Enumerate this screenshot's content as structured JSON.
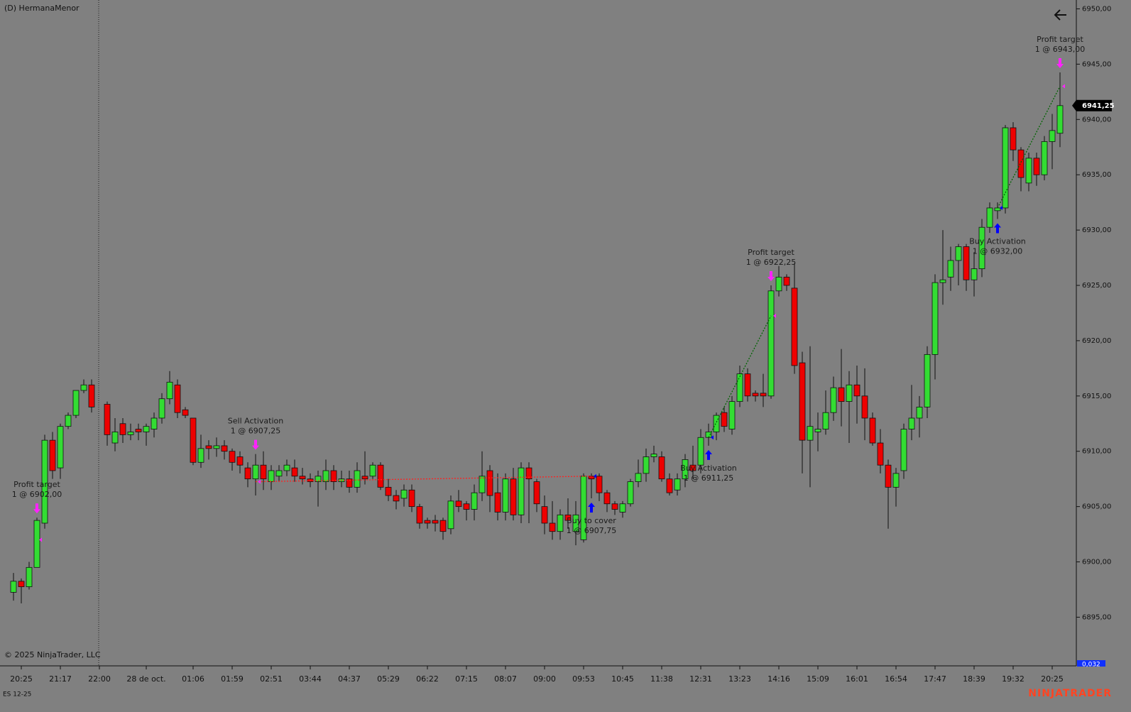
{
  "chart_data": {
    "type": "candlestick",
    "title": "(D) HermanaMenor",
    "instrument": "ES 12-25",
    "copyright": "© 2025 NinjaTrader, LLC",
    "brand": "NINJATRADER",
    "bottom_label": "0,032",
    "last_price": {
      "value": 6941.25,
      "label": "6941,25"
    },
    "up_color": "#33dd33",
    "down_color": "#ee0000",
    "ylim": [
      6890.6,
      6950.8
    ],
    "yticks": [
      {
        "value": 6895,
        "label": "6895,00"
      },
      {
        "value": 6900,
        "label": "6900,00"
      },
      {
        "value": 6905,
        "label": "6905,00"
      },
      {
        "value": 6910,
        "label": "6910,00"
      },
      {
        "value": 6915,
        "label": "6915,00"
      },
      {
        "value": 6920,
        "label": "6920,00"
      },
      {
        "value": 6925,
        "label": "6925,00"
      },
      {
        "value": 6930,
        "label": "6930,00"
      },
      {
        "value": 6935,
        "label": "6935,00"
      },
      {
        "value": 6940,
        "label": "6940,00"
      },
      {
        "value": 6945,
        "label": "6945,00"
      },
      {
        "value": 6950,
        "label": "6950,00"
      }
    ],
    "categories": [
      null,
      "20:25",
      null,
      null,
      null,
      null,
      "21:17",
      null,
      null,
      null,
      null,
      "22:00",
      null,
      null,
      null,
      null,
      null,
      "28 de oct.",
      null,
      null,
      null,
      null,
      null,
      "01:06",
      null,
      null,
      null,
      null,
      "01:59",
      null,
      null,
      null,
      null,
      "02:51",
      null,
      null,
      null,
      null,
      "03:44",
      null,
      null,
      null,
      null,
      "04:37",
      null,
      null,
      null,
      null,
      "05:29",
      null,
      null,
      null,
      null,
      "06:22",
      null,
      null,
      null,
      null,
      "07:15",
      null,
      null,
      null,
      null,
      "08:07",
      null,
      null,
      null,
      null,
      "09:00",
      null,
      null,
      null,
      null,
      "09:53",
      null,
      null,
      null,
      null,
      "10:45",
      null,
      null,
      null,
      null,
      "11:38",
      null,
      null,
      null,
      null,
      "12:31",
      null,
      null,
      null,
      null,
      "13:23",
      null,
      null,
      null,
      null,
      "14:16",
      null,
      null,
      null,
      null,
      "15:09",
      null,
      null,
      null,
      null,
      "16:01",
      null,
      null,
      null,
      null,
      "16:54",
      null,
      null,
      null,
      null,
      "17:47",
      null,
      null,
      null,
      null,
      "18:39",
      null,
      null,
      null,
      null,
      "19:32",
      null,
      null,
      null,
      null,
      "20:25",
      null
    ],
    "open": [
      6897.25,
      6898.25,
      6897.75,
      6899.5,
      6903.5,
      6911,
      6908.5,
      6912.25,
      6913.25,
      6915.5,
      6916,
      null,
      6914.25,
      6910.75,
      6912.5,
      6911.5,
      6912,
      6911.75,
      6912,
      6913,
      6914.75,
      6916,
      6913.75,
      6913,
      6909,
      6910.5,
      6910.25,
      6910.5,
      6910,
      6909.5,
      6908.5,
      6907.5,
      6908.75,
      6907.25,
      6907.75,
      6908.25,
      6908.5,
      6907.75,
      6907.5,
      6907.25,
      6907.25,
      6908.25,
      6907.25,
      6907.5,
      6906.75,
      6907.75,
      6907.75,
      6908.75,
      6906.75,
      6906,
      6905.75,
      6906.5,
      6905,
      6903.75,
      6903.75,
      6903.75,
      6903,
      6905.5,
      6905.25,
      6904.75,
      6906.25,
      6908.25,
      6906.25,
      6904.5,
      6907.5,
      6904.25,
      6908.5,
      6907.25,
      6905,
      6903.5,
      6902.75,
      6904.25,
      6902.75,
      6902,
      6907.75,
      6907.75,
      6906.25,
      6905.25,
      6904.5,
      6905.25,
      6907.25,
      6908,
      6909.5,
      6909.5,
      6907.5,
      6906.5,
      6907.5,
      6908.75,
      6908.75,
      6911.25,
      6911.75,
      6913.5,
      6912,
      6914.5,
      6917,
      6915.25,
      6915.25,
      6915,
      6924.5,
      6925.75,
      6924.75,
      6918,
      6911,
      6911.75,
      6912,
      6913.5,
      6915.75,
      6914.5,
      6916,
      6915,
      6913,
      6910.75,
      6908.75,
      6906.75,
      6908.25,
      6912,
      6913,
      6914,
      6918.75,
      6925.25,
      6925.75,
      6927.25,
      6928.5,
      6925.5,
      6926.5,
      6930.25,
      6931.75,
      6932,
      6939.25,
      6937.25,
      6934.25,
      6936.5,
      6935,
      6938,
      6938.75
    ],
    "high": [
      6899,
      6898.5,
      6900,
      6904,
      6911.5,
      6911.75,
      6912.5,
      6913.5,
      6915.5,
      6916.5,
      6916.5,
      null,
      6914.5,
      6913,
      6913,
      6912.5,
      6912.5,
      6912.5,
      6913.5,
      6915.25,
      6917.25,
      6916.5,
      6914,
      6913,
      6911.5,
      6911,
      6911.25,
      6911,
      6910.25,
      6910,
      6909,
      6909.75,
      6910,
      6908.75,
      6908.75,
      6909.25,
      6909.25,
      6908.5,
      6908,
      6908.25,
      6909.25,
      6908.75,
      6908.25,
      6908.25,
      6909,
      6910,
      6909,
      6909,
      6907.5,
      6906.5,
      6907,
      6907,
      6905.25,
      6904,
      6904.25,
      6904,
      6906,
      6906.5,
      6905.5,
      6907,
      6910,
      6908.75,
      6908,
      6908,
      6908.5,
      6909,
      6909,
      6907.5,
      6906,
      6905.5,
      6904.75,
      6905.75,
      6905.5,
      6908,
      6908,
      6908,
      6906.5,
      6905.5,
      6905.5,
      6907.5,
      6909.25,
      6910.25,
      6910.5,
      6910,
      6908,
      6908,
      6909.75,
      6910.5,
      6912,
      6912.5,
      6913.5,
      6914,
      6915,
      6917.75,
      6917.5,
      6915.5,
      6917,
      6925,
      6926.75,
      6926,
      6927,
      6919,
      6919.5,
      6913.5,
      6915.5,
      6916.75,
      6919.25,
      6917.25,
      6917.75,
      6917.5,
      6913.5,
      6912,
      6909.25,
      6908.5,
      6912.5,
      6916,
      6915,
      6919.5,
      6926,
      6930,
      6928.5,
      6928.75,
      6928.75,
      6928,
      6931,
      6932.5,
      6932.5,
      6939.5,
      6939.75,
      6937.5,
      6937,
      6937,
      6938.5,
      6940.5,
      6944.25
    ],
    "low": [
      6896.5,
      6896.25,
      6897.5,
      6899.5,
      6903,
      6907.5,
      6907.5,
      6912,
      6913,
      6915.25,
      6913.5,
      null,
      6910.5,
      6910,
      6910.75,
      6911,
      6911,
      6910.5,
      6911.25,
      6912.5,
      6914.25,
      6913,
      6913,
      6908.75,
      6908.5,
      6909.25,
      6909.5,
      6909.25,
      6908.25,
      6908,
      6906.75,
      6906,
      6906.5,
      6906.5,
      6907.25,
      6907.75,
      6907.25,
      6907,
      6906.75,
      6905,
      6906.5,
      6906.5,
      6906.75,
      6906.25,
      6906.25,
      6907,
      6907.5,
      6906.5,
      6905.5,
      6904.75,
      6905,
      6904.5,
      6903,
      6903,
      6902.75,
      6902,
      6902.5,
      6904.5,
      6903.75,
      6903.75,
      6905.5,
      6904.5,
      6903.75,
      6903.75,
      6903.75,
      6903.5,
      6903.5,
      6904.5,
      6902.5,
      6902,
      6902,
      6903,
      6901.5,
      6901.75,
      6905.75,
      6905.5,
      6904.5,
      6904.25,
      6904,
      6905,
      6906.75,
      6907.25,
      6909,
      6907.25,
      6906,
      6906,
      6906.75,
      6907.5,
      6908,
      6910.5,
      6911,
      6911.75,
      6911.5,
      6914,
      6914.5,
      6914.5,
      6914,
      6914.75,
      6924,
      6924.5,
      6917,
      6908,
      6906.75,
      6910,
      6911.5,
      6912.75,
      6912.25,
      6910.75,
      6912.5,
      6911,
      6910.5,
      6908,
      6903,
      6905,
      6907.5,
      6911,
      6911.25,
      6913,
      6916.5,
      6923.25,
      6924.5,
      6925,
      6924.5,
      6924,
      6925.75,
      6929.75,
      6931,
      6931.5,
      6936.25,
      6933.5,
      6933.5,
      6934,
      6934.5,
      6935.5,
      6937.5
    ],
    "close": [
      6898.25,
      6897.75,
      6899.5,
      6903.75,
      6911,
      6908.25,
      6912.25,
      6913.25,
      6915.5,
      6916,
      6914,
      null,
      6911.5,
      6911.75,
      6911.5,
      6911.75,
      6911.75,
      6912.25,
      6913,
      6914.75,
      6916.25,
      6913.5,
      6913.25,
      6909,
      6910.25,
      6910.25,
      6910.5,
      6910,
      6909,
      6908.75,
      6907.5,
      6908.75,
      6907.5,
      6908.25,
      6908.25,
      6908.75,
      6907.75,
      6907.5,
      6907.25,
      6907.75,
      6908.25,
      6907.25,
      6907.5,
      6906.75,
      6908.25,
      6907.5,
      6908.75,
      6906.75,
      6906,
      6905.5,
      6906.5,
      6905,
      6903.5,
      6903.5,
      6903.5,
      6902.75,
      6905.5,
      6905,
      6904.75,
      6906.25,
      6907.75,
      6906,
      6904.5,
      6907.5,
      6904.25,
      6908.5,
      6907.5,
      6905.25,
      6903.5,
      6902.75,
      6904.25,
      6903.75,
      6904.25,
      6907.75,
      6907.5,
      6906.25,
      6905.25,
      6904.75,
      6905.25,
      6907.25,
      6908,
      6909.5,
      6909.75,
      6907.5,
      6906.25,
      6907.5,
      6909.25,
      6908.25,
      6911.25,
      6911.75,
      6913.25,
      6912.25,
      6914.5,
      6917,
      6915,
      6915,
      6915,
      6924.5,
      6925.75,
      6925,
      6917.75,
      6911,
      6912.25,
      6912,
      6913.5,
      6915.75,
      6914.5,
      6916,
      6915,
      6913,
      6910.75,
      6908.75,
      6906.75,
      6908,
      6912,
      6913,
      6914,
      6918.75,
      6925.25,
      6925.5,
      6927.25,
      6928.5,
      6925.5,
      6926.5,
      6930.25,
      6932,
      6932,
      6939.25,
      6937.25,
      6934.75,
      6936.5,
      6935,
      6938,
      6939,
      6941.25
    ],
    "annotations": [
      {
        "bar": 3,
        "side": "sell",
        "label": "Profit target",
        "text": "1 @ 6902,00",
        "price": 6902
      },
      {
        "bar": 31,
        "side": "sell",
        "label": "Sell Activation",
        "text": "1 @ 6907,25",
        "price": 6907.25
      },
      {
        "bar": 74,
        "side": "buy",
        "label": "Buy to cover",
        "text": "1 @ 6907,75",
        "price": 6907.75
      },
      {
        "bar": 89,
        "side": "buy",
        "label": "Buy Activation",
        "text": "1 @ 6911,25",
        "price": 6911.25
      },
      {
        "bar": 97,
        "side": "sell",
        "label": "Profit target",
        "text": "1 @ 6922,25",
        "price": 6922.25
      },
      {
        "bar": 126,
        "side": "buy",
        "label": "Buy Activation",
        "text": "1 @ 6932,00",
        "price": 6932
      },
      {
        "bar": 134,
        "side": "sell",
        "label": "Profit target",
        "text": "1 @ 6943,00",
        "price": 6943
      }
    ],
    "sell_color": "#ff22ff",
    "buy_color": "#0000ff",
    "trades": [
      {
        "entry": 1,
        "exit": 2,
        "color": "#ff2020"
      },
      {
        "entry": 3,
        "exit": 4,
        "color": "#006400"
      },
      {
        "entry": 5,
        "exit": 6,
        "color": "#006400"
      }
    ]
  }
}
